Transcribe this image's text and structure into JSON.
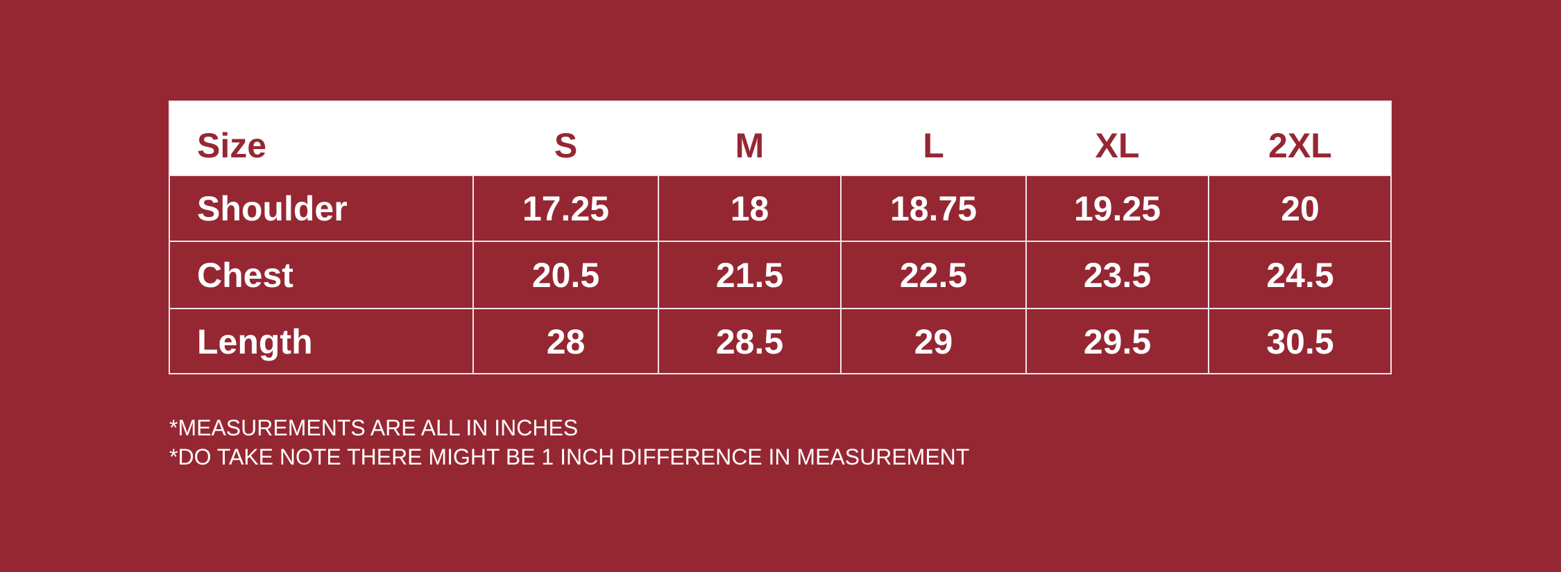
{
  "table": {
    "header": {
      "label": "Size",
      "sizes": [
        "S",
        "M",
        "L",
        "XL",
        "2XL"
      ]
    },
    "rows": [
      {
        "label": "Shoulder",
        "values": [
          "17.25",
          "18",
          "18.75",
          "19.25",
          "20"
        ]
      },
      {
        "label": "Chest",
        "values": [
          "20.5",
          "21.5",
          "22.5",
          "23.5",
          "24.5"
        ]
      },
      {
        "label": "Length",
        "values": [
          "28",
          "28.5",
          "29",
          "29.5",
          "30.5"
        ]
      }
    ]
  },
  "notes": [
    "*MEASUREMENTS ARE ALL IN INCHES",
    "*DO TAKE NOTE THERE MIGHT BE 1 INCH DIFFERENCE IN MEASUREMENT"
  ],
  "colors": {
    "background": "#952733",
    "header_bg": "#ffffff",
    "grid": "#f3e6e7"
  }
}
